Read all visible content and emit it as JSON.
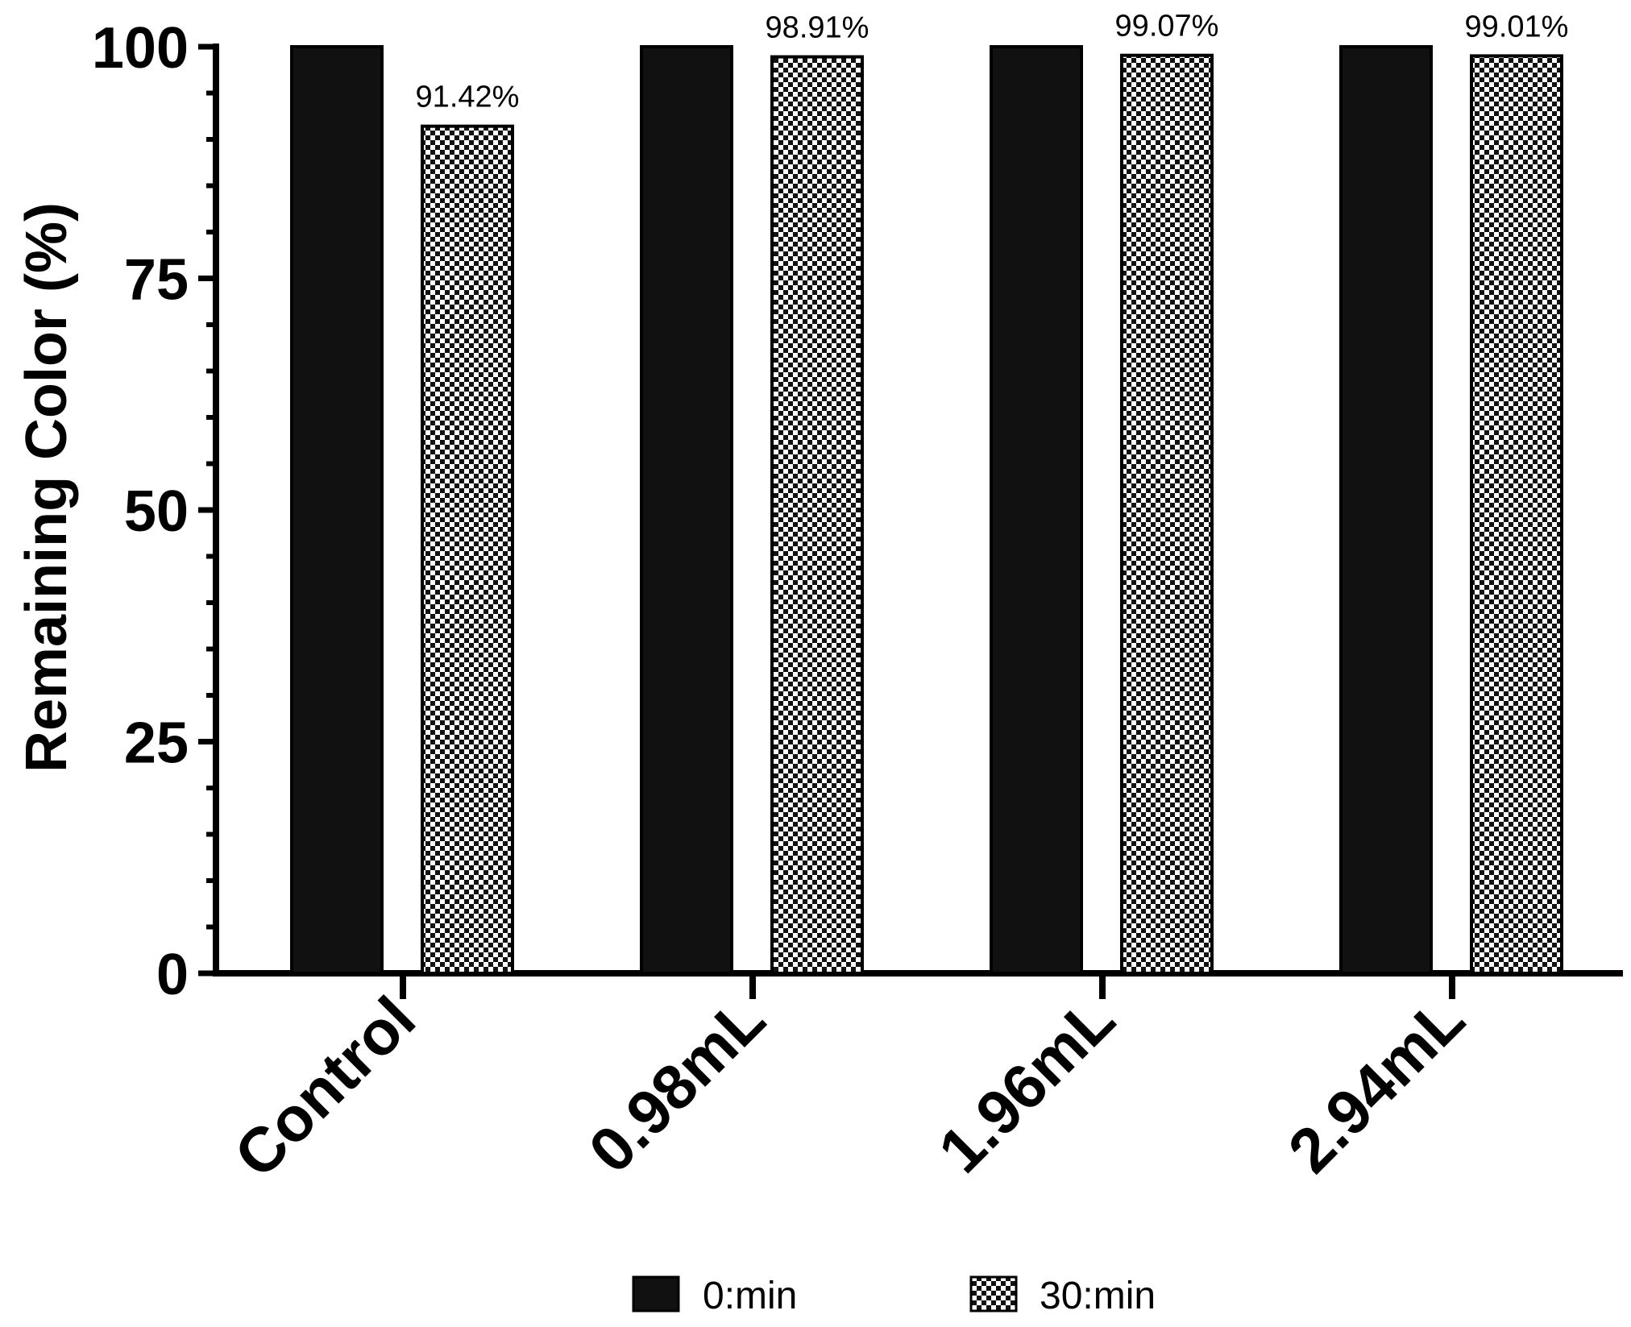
{
  "chart_data": {
    "type": "bar",
    "title": "",
    "xlabel": "",
    "ylabel": "Remaining Color (%)",
    "ylim": [
      0,
      100
    ],
    "yticks": [
      0,
      25,
      50,
      75,
      100
    ],
    "categories": [
      "Control",
      "0.98mL",
      "1.96mL",
      "2.94mL"
    ],
    "series": [
      {
        "name": "0:min",
        "values": [
          100,
          100,
          100,
          100
        ],
        "fill": "#111111",
        "pattern": "solid"
      },
      {
        "name": "30:min",
        "values": [
          91.42,
          98.91,
          99.07,
          99.01
        ],
        "fill": "#ffffff",
        "pattern": "checkerboard"
      }
    ],
    "data_labels": [
      "91.42%",
      "98.91%",
      "99.07%",
      "99.01%"
    ],
    "legend_position": "bottom-center",
    "grid": false
  }
}
